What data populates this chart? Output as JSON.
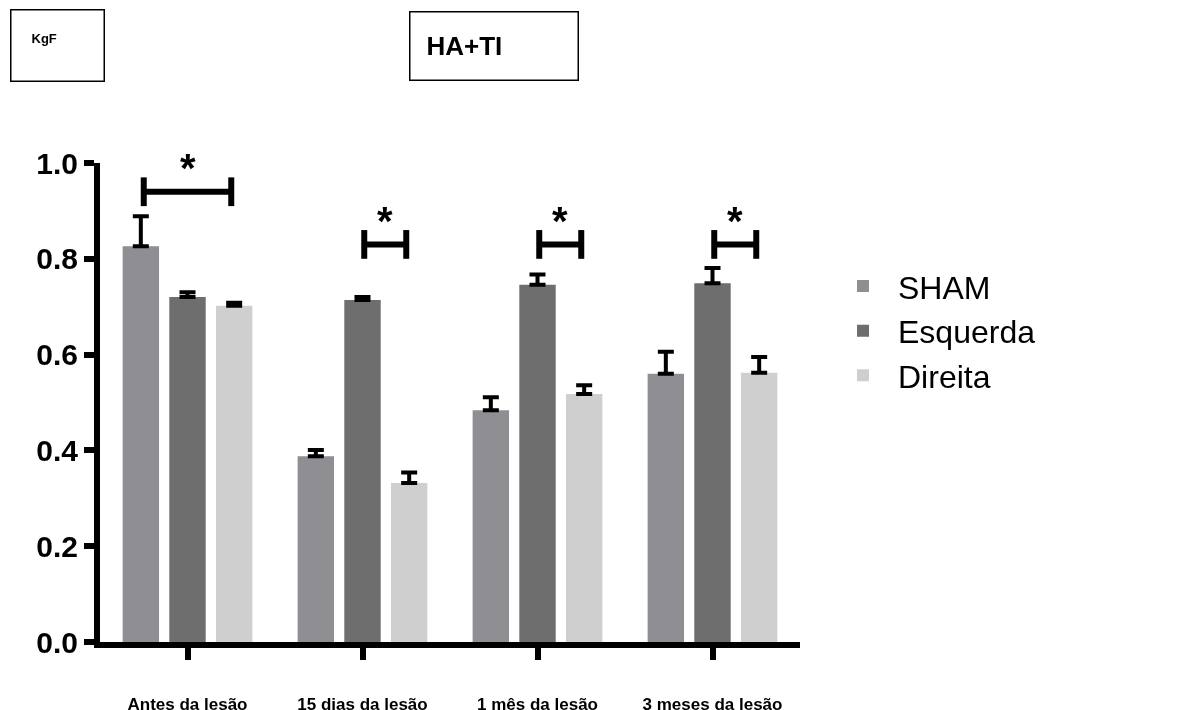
{
  "chart_data": {
    "type": "bar",
    "title": "HA+TI",
    "categories": [
      "Antes da lesão",
      "15 dias da lesão",
      "1 mês da lesão",
      "3 meses da lesão"
    ],
    "series": [
      {
        "name": "SHAM",
        "color": "#8e8e93",
        "values": [
          0.826,
          0.388,
          0.484,
          0.56
        ],
        "errors": [
          [
            0.826,
            0.889
          ],
          [
            0.388,
            0.401
          ],
          [
            0.484,
            0.511
          ],
          [
            0.56,
            0.606
          ]
        ]
      },
      {
        "name": "Esquerda",
        "color": "#6e6e6e",
        "values": [
          0.72,
          0.714,
          0.746,
          0.749
        ],
        "errors": [
          [
            0.72,
            0.73
          ],
          [
            0.714,
            0.72
          ],
          [
            0.746,
            0.767
          ],
          [
            0.749,
            0.781
          ]
        ]
      },
      {
        "name": "Direita",
        "color": "#cfcfcf",
        "values": [
          0.702,
          0.332,
          0.518,
          0.562
        ],
        "errors": [
          [
            0.702,
            0.708
          ],
          [
            0.332,
            0.354
          ],
          [
            0.518,
            0.536
          ],
          [
            0.562,
            0.595
          ]
        ]
      }
    ],
    "ylim": [
      0,
      1.0
    ],
    "yticks": [
      {
        "value": 0,
        "label": "0.0"
      },
      {
        "value": 0.2,
        "label": "0.2"
      },
      {
        "value": 0.4,
        "label": "0.4"
      },
      {
        "value": 0.6,
        "label": "0.6"
      },
      {
        "value": 0.8,
        "label": "0.8"
      },
      {
        "value": 1.0,
        "label": "1.0"
      }
    ],
    "annotations": [
      "KgF",
      "*",
      "*",
      "*",
      "*"
    ],
    "grid": false,
    "legend": "right"
  }
}
